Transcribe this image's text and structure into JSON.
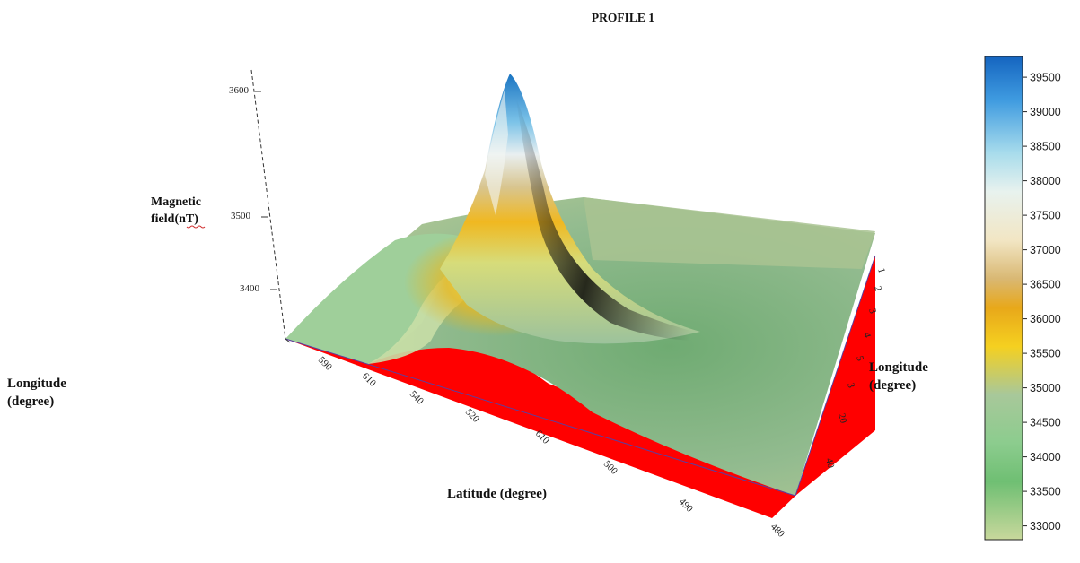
{
  "chart_data": {
    "type": "surface-3d",
    "title": "PROFILE 1",
    "zlabel_line1": "Magnetic",
    "zlabel_line2": "field(nT)",
    "xlabel": "Latitude (degree)",
    "ylabel_line1": "Longitude",
    "ylabel_line2": "(degree)",
    "left_label_line1": "Longitude",
    "left_label_line2": "(degree)",
    "z_ticks": [
      "3600",
      "3500",
      "3400"
    ],
    "latitude_ticks": [
      "590",
      "610",
      "540",
      "520",
      "610",
      "500",
      "490",
      "480"
    ],
    "longitude_ticks": [
      "1",
      "2",
      "3",
      "4",
      "5",
      "3",
      "20",
      "40"
    ],
    "colorbar": {
      "ticks": [
        "39500",
        "39000",
        "38500",
        "38000",
        "37500",
        "37000",
        "36500",
        "36000",
        "35500",
        "35000",
        "34500",
        "34000",
        "33500",
        "33000"
      ],
      "values": [
        39500,
        39000,
        38500,
        38000,
        37500,
        37000,
        36500,
        36000,
        35500,
        35000,
        34500,
        34000,
        33500,
        33000
      ],
      "min": 32800,
      "max": 39800,
      "colors_high_to_low": [
        "#1565c0",
        "#3f9be0",
        "#a8dcec",
        "#e8f2ee",
        "#f2e6c4",
        "#d9b873",
        "#e8a81a",
        "#f5d020",
        "#a8c89a",
        "#8ccc8e",
        "#6fbf73",
        "#c2d49a"
      ]
    },
    "surface_colors": {
      "peak": "#1a74c2",
      "base": "#9cc29c",
      "side": "#ff0000",
      "ridge": "#f0c020"
    },
    "peak_value": 39500,
    "background_value": 33800,
    "grid": false,
    "legend": "right colorbar"
  }
}
